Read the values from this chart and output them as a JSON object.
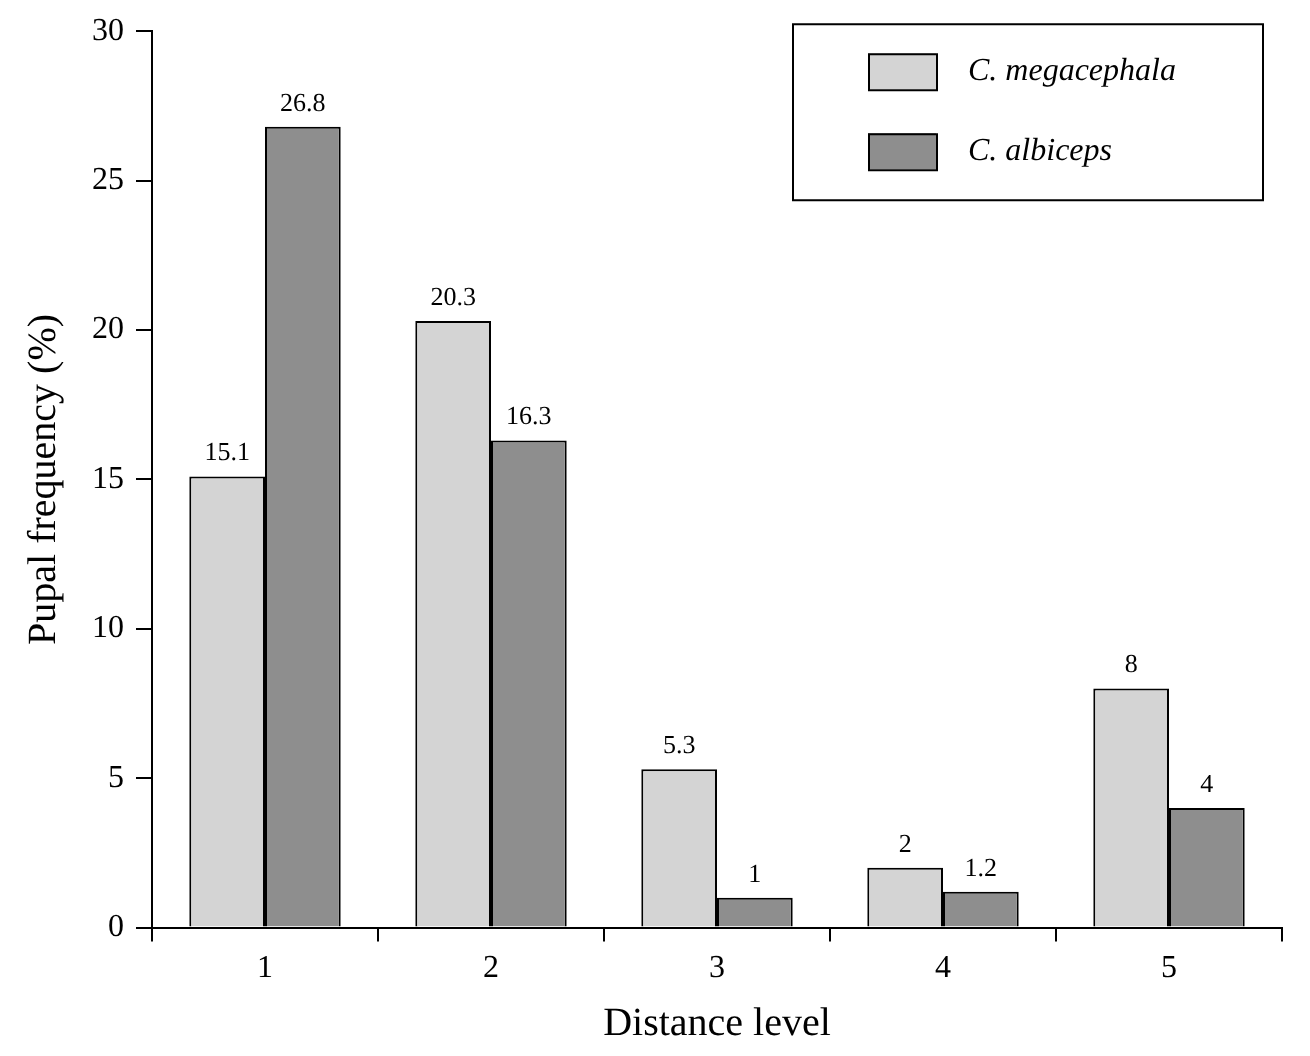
{
  "chart_data": {
    "type": "bar",
    "xlabel": "Distance level",
    "ylabel": "Pupal frequency (%)",
    "categories": [
      "1",
      "2",
      "3",
      "4",
      "5"
    ],
    "series": [
      {
        "name": "C. megacephala",
        "color": "#d4d4d4",
        "values": [
          15.1,
          20.3,
          5.3,
          2,
          8
        ]
      },
      {
        "name": "C. albiceps",
        "color": "#8e8e8e",
        "values": [
          26.8,
          16.3,
          1,
          1.2,
          4
        ]
      }
    ],
    "ylim": [
      0,
      30
    ],
    "yticks": [
      0,
      5,
      10,
      15,
      20,
      25,
      30
    ],
    "grid": false,
    "legend": "top right",
    "data_labels": true
  }
}
